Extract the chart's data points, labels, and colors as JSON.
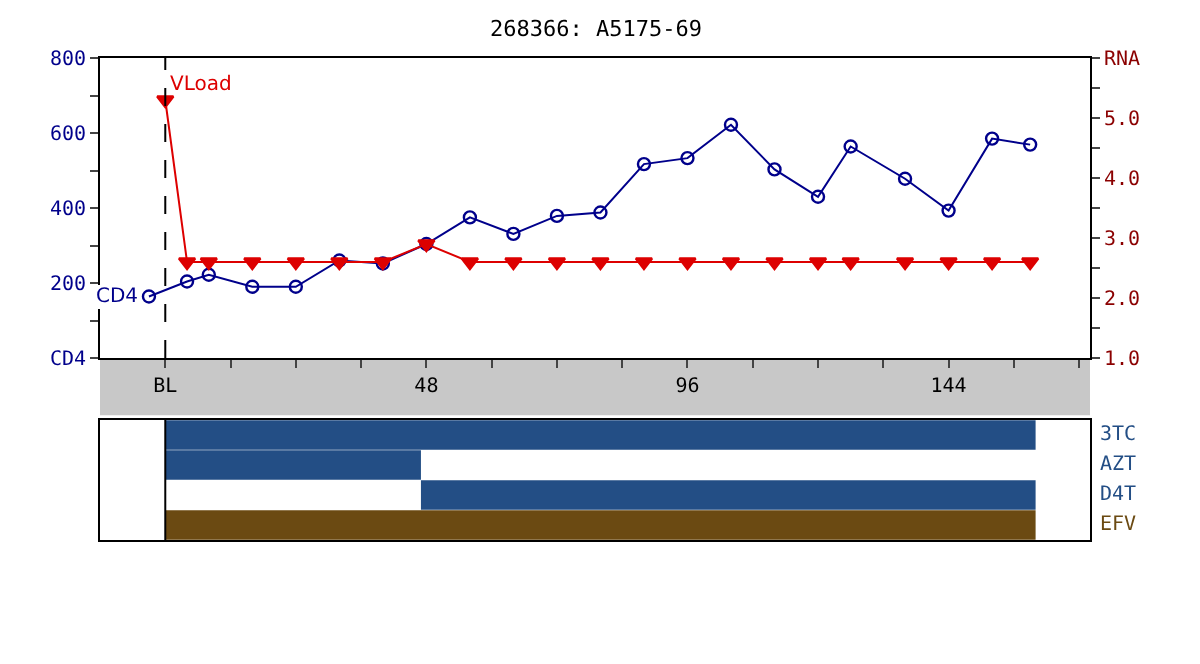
{
  "chart_data": [
    {
      "type": "line",
      "title": "268366: A5175-69",
      "xlim": [
        -12,
        170
      ],
      "xticks": [
        {
          "value": 0,
          "label": "BL"
        },
        {
          "value": 12,
          "label": null
        },
        {
          "value": 24,
          "label": null
        },
        {
          "value": 36,
          "label": null
        },
        48,
        {
          "value": 60,
          "label": null
        },
        {
          "value": 72,
          "label": null
        },
        {
          "value": 84,
          "label": null
        },
        96,
        {
          "value": 108,
          "label": null
        },
        {
          "value": 120,
          "label": null
        },
        {
          "value": 132,
          "label": null
        },
        144,
        {
          "value": 156,
          "label": null
        },
        {
          "value": 168,
          "label": null
        }
      ],
      "ylim": [
        0,
        800
      ],
      "yticks": [
        {
          "value": 0,
          "label": "CD4"
        },
        {
          "value": 100,
          "label": null
        },
        200,
        {
          "value": 300,
          "label": null
        },
        400,
        {
          "value": 500,
          "label": null
        },
        600,
        {
          "value": 700,
          "label": null
        },
        800
      ],
      "y2lim": [
        1,
        6
      ],
      "y2ticks": [
        {
          "value": 1,
          "label": "1.0"
        },
        {
          "value": 1.5,
          "label": null
        },
        {
          "value": 2,
          "label": "2.0"
        },
        {
          "value": 2.5,
          "label": null
        },
        {
          "value": 3,
          "label": "3.0"
        },
        {
          "value": 3.5,
          "label": null
        },
        {
          "value": 4,
          "label": "4.0"
        },
        {
          "value": 4.5,
          "label": null
        },
        {
          "value": 5,
          "label": "5.0"
        },
        {
          "value": 5.5,
          "label": null
        },
        {
          "value": 6,
          "label": "RNA"
        }
      ],
      "ref_lines": [
        {
          "axis": "x",
          "value": 0,
          "color": "#000000",
          "line_style": "dashed"
        }
      ],
      "series": [
        {
          "name": "CD4",
          "color": "#00008b",
          "marker": "circle",
          "x": [
            -3,
            4,
            8,
            16,
            24,
            32,
            40,
            48,
            56,
            64,
            72,
            80,
            88,
            96,
            104,
            112,
            120,
            126,
            136,
            144,
            152,
            159
          ],
          "values": [
            164,
            204,
            222,
            190,
            190,
            260,
            252,
            304,
            375,
            331,
            379,
            388,
            517,
            533,
            622,
            503,
            430,
            564,
            478,
            393,
            585,
            569
          ]
        },
        {
          "name": "VLoad",
          "color": "#dd0000",
          "marker": "triangle",
          "axis": "y2",
          "x": [
            0,
            4,
            8,
            16,
            24,
            32,
            40,
            48,
            56,
            64,
            72,
            80,
            88,
            96,
            104,
            112,
            120,
            126,
            136,
            144,
            152,
            159
          ],
          "values": [
            5.3,
            2.6,
            2.6,
            2.6,
            2.6,
            2.6,
            2.6,
            2.9,
            2.6,
            2.6,
            2.6,
            2.6,
            2.6,
            2.6,
            2.6,
            2.6,
            2.6,
            2.6,
            2.6,
            2.6,
            2.6,
            2.6
          ]
        }
      ]
    },
    {
      "type": "bar",
      "orientation": "horizontal",
      "xlim": [
        -12,
        170
      ],
      "tick_labels": "y",
      "categories": [
        "3TC",
        "AZT",
        "D4T",
        "EFV"
      ],
      "base": [
        0,
        0,
        47,
        0
      ],
      "values": [
        160,
        47,
        113,
        160
      ],
      "colors": [
        "#234e85",
        "#234e85",
        "#234e85",
        "#6b4a12"
      ],
      "ref_lines": [
        {
          "axis": "x",
          "value": 0,
          "color": "#000000",
          "line_style": "solid"
        }
      ]
    }
  ]
}
